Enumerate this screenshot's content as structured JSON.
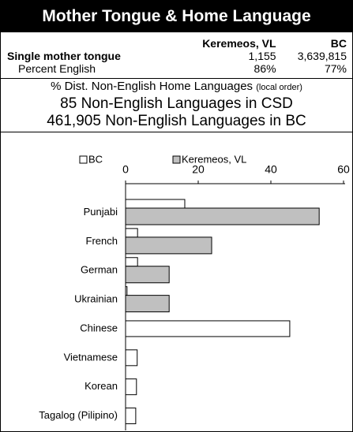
{
  "header": {
    "title": "Mother Tongue & Home Language"
  },
  "table": {
    "columns": [
      "Keremeos, VL",
      "BC"
    ],
    "rows": [
      [
        "Single mother tongue",
        "1,155",
        "3,639,815"
      ],
      [
        "Percent English",
        "86%",
        "77%"
      ]
    ]
  },
  "info": {
    "lines": [
      [
        "% Dist. Non-English Home Languages",
        "(local order)"
      ],
      [
        "85 Non-English Languages in CSD"
      ],
      [
        "461,905 Non-English Languages in BC"
      ]
    ]
  },
  "chart_data": {
    "type": "bar",
    "orientation": "horizontal",
    "categories": [
      "Punjabi",
      "French",
      "German",
      "Ukrainian",
      "Chinese",
      "Vietnamese",
      "Korean",
      "Tagalog (Pilipino)"
    ],
    "series": [
      {
        "name": "BC",
        "color": "#ffffff",
        "values": [
          16.3,
          3.3,
          3.3,
          0.4,
          45.2,
          3.2,
          3,
          2.8
        ]
      },
      {
        "name": "Keremeos, VL",
        "color": "#c0c0c0",
        "values": [
          53.3,
          23.7,
          12,
          12,
          null,
          null,
          null,
          null
        ]
      }
    ],
    "xlim": [
      0,
      60
    ],
    "xticks": [
      0,
      20,
      40,
      60
    ],
    "legend": "top"
  }
}
